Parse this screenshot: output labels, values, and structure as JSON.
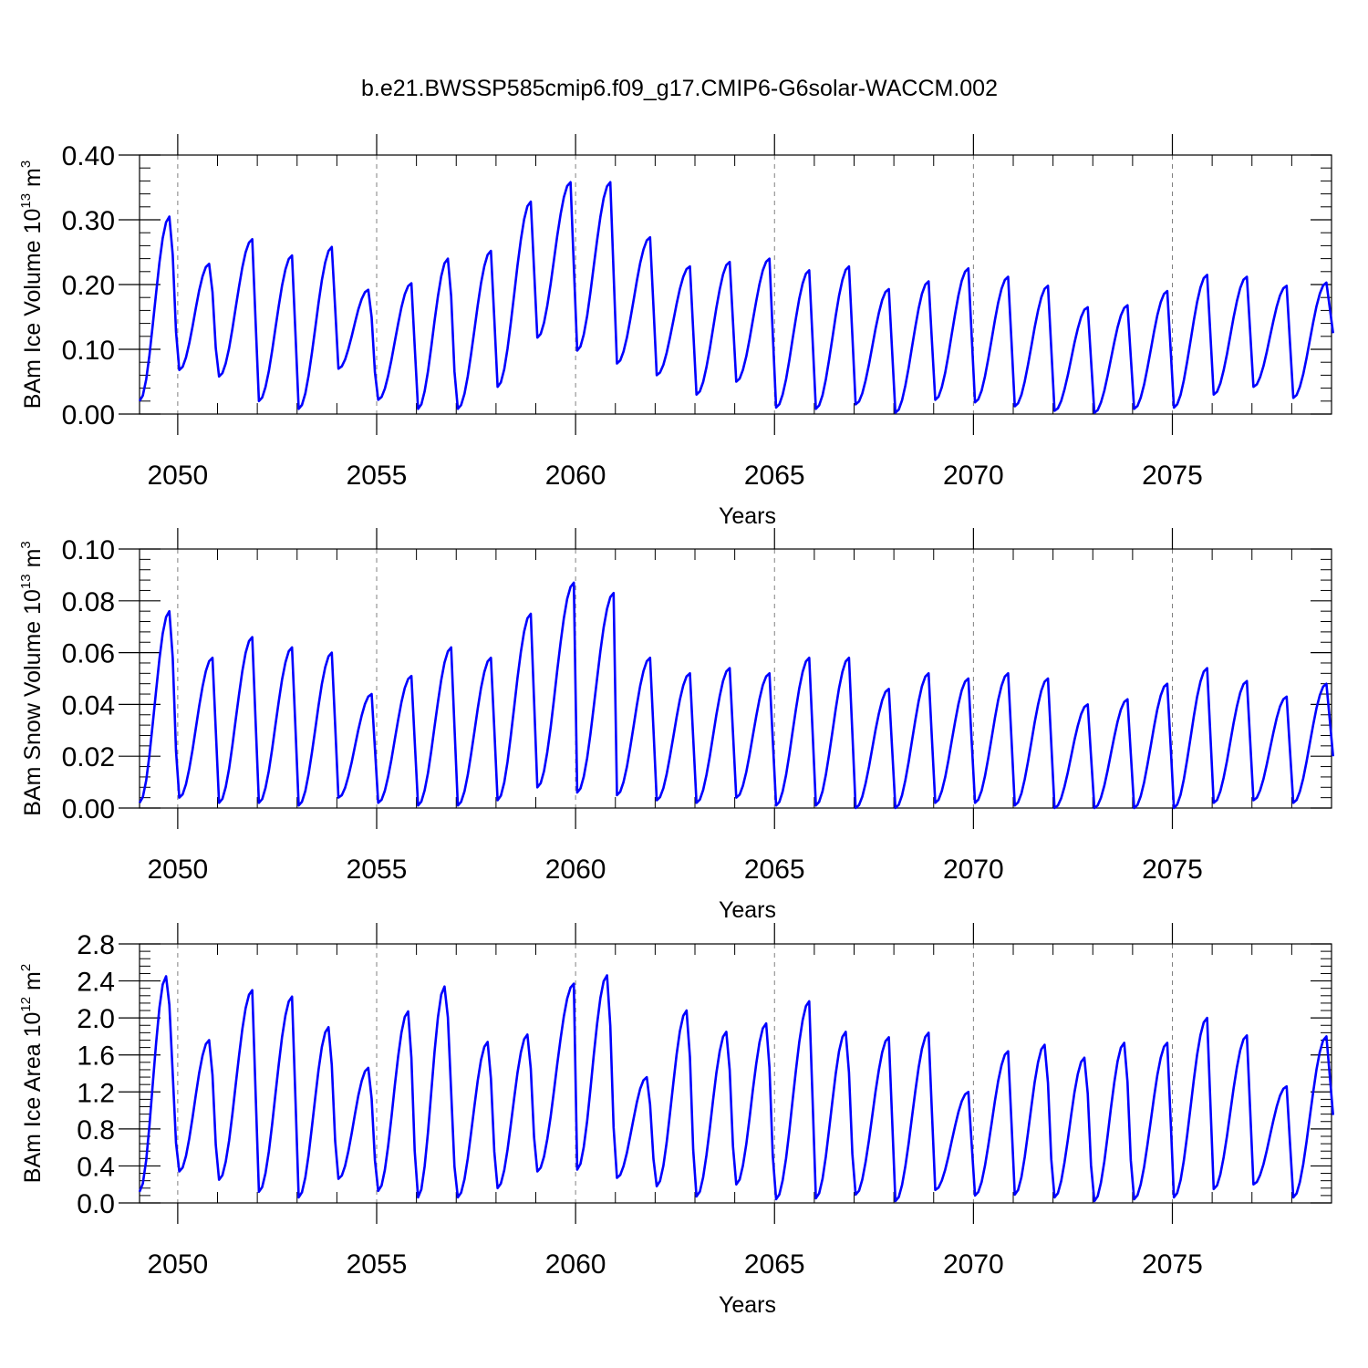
{
  "figure": {
    "title": "b.e21.BWSSP585cmip6.f09_g17.CMIP6-G6solar-WACCM.002",
    "colors": {
      "series": "#0000ff",
      "axes": "#000000",
      "refline": "#808080"
    }
  },
  "chart_data": [
    {
      "type": "line",
      "ylabel": {
        "prefix": "BAm Ice Volume 10",
        "sup_exp": "13",
        "unit": " m",
        "sup_unit": "3"
      },
      "xlabel": "Years",
      "xlim": [
        2049.04,
        2079.0
      ],
      "ylim": [
        0.0,
        0.4
      ],
      "yticks": [
        0.0,
        0.1,
        0.2,
        0.3,
        0.4
      ],
      "ytick_labels": [
        "0.00",
        "0.10",
        "0.20",
        "0.30",
        "0.40"
      ],
      "xticks": [
        2050,
        2055,
        2060,
        2065,
        2070,
        2075
      ],
      "xtick_labels": [
        "2050",
        "2055",
        "2060",
        "2065",
        "2070",
        "2075"
      ],
      "reference_lines_x": [
        2050,
        2055,
        2060,
        2065,
        2070,
        2075
      ],
      "grid": false,
      "series": [
        {
          "peak_months": [
            9,
            9,
            10,
            10,
            10,
            9,
            10,
            9,
            10,
            10,
            10,
            10,
            10,
            10,
            10,
            10,
            10,
            10,
            10,
            10,
            10,
            10,
            10,
            10,
            10,
            10,
            10,
            10,
            10,
            10
          ],
          "x_start": 2049.04,
          "step": 0.08333,
          "years": [
            {
              "min": 0.02,
              "max": 0.305
            },
            {
              "min": 0.068,
              "max": 0.232
            },
            {
              "min": 0.058,
              "max": 0.27
            },
            {
              "min": 0.02,
              "max": 0.245
            },
            {
              "min": 0.008,
              "max": 0.258
            },
            {
              "min": 0.07,
              "max": 0.192
            },
            {
              "min": 0.022,
              "max": 0.202
            },
            {
              "min": 0.008,
              "max": 0.24
            },
            {
              "min": 0.008,
              "max": 0.252
            },
            {
              "min": 0.042,
              "max": 0.328
            },
            {
              "min": 0.118,
              "max": 0.358
            },
            {
              "min": 0.098,
              "max": 0.358
            },
            {
              "min": 0.078,
              "max": 0.273
            },
            {
              "min": 0.06,
              "max": 0.228
            },
            {
              "min": 0.03,
              "max": 0.235
            },
            {
              "min": 0.05,
              "max": 0.24
            },
            {
              "min": 0.01,
              "max": 0.222
            },
            {
              "min": 0.008,
              "max": 0.228
            },
            {
              "min": 0.015,
              "max": 0.193
            },
            {
              "min": 0.002,
              "max": 0.205
            },
            {
              "min": 0.022,
              "max": 0.225
            },
            {
              "min": 0.018,
              "max": 0.212
            },
            {
              "min": 0.012,
              "max": 0.198
            },
            {
              "min": 0.005,
              "max": 0.165
            },
            {
              "min": 0.002,
              "max": 0.168
            },
            {
              "min": 0.008,
              "max": 0.19
            },
            {
              "min": 0.01,
              "max": 0.215
            },
            {
              "min": 0.03,
              "max": 0.212
            },
            {
              "min": 0.042,
              "max": 0.198
            },
            {
              "min": 0.025,
              "max": 0.203
            }
          ],
          "end_value": 0.125
        }
      ]
    },
    {
      "type": "line",
      "ylabel": {
        "prefix": "BAm Snow Volume 10",
        "sup_exp": "13",
        "unit": " m",
        "sup_unit": "3"
      },
      "xlabel": "Years",
      "xlim": [
        2049.04,
        2079.0
      ],
      "ylim": [
        0.0,
        0.1
      ],
      "yticks": [
        0.0,
        0.02,
        0.04,
        0.06,
        0.08,
        0.1
      ],
      "ytick_labels": [
        "0.00",
        "0.02",
        "0.04",
        "0.06",
        "0.08",
        "0.10"
      ],
      "xticks": [
        2050,
        2055,
        2060,
        2065,
        2070,
        2075
      ],
      "xtick_labels": [
        "2050",
        "2055",
        "2060",
        "2065",
        "2070",
        "2075"
      ],
      "reference_lines_x": [
        2050,
        2055,
        2060,
        2065,
        2070,
        2075
      ],
      "grid": false,
      "series": [
        {
          "peak_months": [
            9,
            10,
            10,
            10,
            10,
            10,
            10,
            10,
            10,
            10,
            11,
            11,
            10,
            10,
            10,
            10,
            10,
            10,
            10,
            10,
            10,
            10,
            10,
            10,
            10,
            10,
            10,
            10,
            10,
            10
          ],
          "x_start": 2049.04,
          "step": 0.08333,
          "years": [
            {
              "min": 0.002,
              "max": 0.076
            },
            {
              "min": 0.004,
              "max": 0.058
            },
            {
              "min": 0.002,
              "max": 0.066
            },
            {
              "min": 0.002,
              "max": 0.062
            },
            {
              "min": 0.001,
              "max": 0.06
            },
            {
              "min": 0.004,
              "max": 0.044
            },
            {
              "min": 0.002,
              "max": 0.051
            },
            {
              "min": 0.001,
              "max": 0.062
            },
            {
              "min": 0.001,
              "max": 0.058
            },
            {
              "min": 0.003,
              "max": 0.075
            },
            {
              "min": 0.008,
              "max": 0.087
            },
            {
              "min": 0.006,
              "max": 0.083
            },
            {
              "min": 0.005,
              "max": 0.058
            },
            {
              "min": 0.003,
              "max": 0.052
            },
            {
              "min": 0.002,
              "max": 0.054
            },
            {
              "min": 0.004,
              "max": 0.052
            },
            {
              "min": 0.001,
              "max": 0.058
            },
            {
              "min": 0.001,
              "max": 0.058
            },
            {
              "min": 0.0,
              "max": 0.046
            },
            {
              "min": 0.0,
              "max": 0.052
            },
            {
              "min": 0.002,
              "max": 0.05
            },
            {
              "min": 0.002,
              "max": 0.052
            },
            {
              "min": 0.001,
              "max": 0.05
            },
            {
              "min": 0.0,
              "max": 0.04
            },
            {
              "min": 0.0,
              "max": 0.042
            },
            {
              "min": 0.0,
              "max": 0.048
            },
            {
              "min": 0.0,
              "max": 0.054
            },
            {
              "min": 0.002,
              "max": 0.049
            },
            {
              "min": 0.003,
              "max": 0.043
            },
            {
              "min": 0.002,
              "max": 0.048
            }
          ],
          "end_value": 0.02
        }
      ]
    },
    {
      "type": "line",
      "ylabel": {
        "prefix": "BAm Ice Area 10",
        "sup_exp": "12",
        "unit": " m",
        "sup_unit": "2"
      },
      "xlabel": "Years",
      "xlim": [
        2049.04,
        2079.0
      ],
      "ylim": [
        0.0,
        2.8
      ],
      "yticks": [
        0.0,
        0.4,
        0.8,
        1.2,
        1.6,
        2.0,
        2.4,
        2.8
      ],
      "ytick_labels": [
        "0.0",
        "0.4",
        "0.8",
        "1.2",
        "1.6",
        "2.0",
        "2.4",
        "2.8"
      ],
      "xticks": [
        2050,
        2055,
        2060,
        2065,
        2070,
        2075
      ],
      "xtick_labels": [
        "2050",
        "2055",
        "2060",
        "2065",
        "2070",
        "2075"
      ],
      "reference_lines_x": [
        2050,
        2055,
        2060,
        2065,
        2070,
        2075
      ],
      "grid": false,
      "series": [
        {
          "peak_months": [
            8,
            9,
            10,
            10,
            9,
            9,
            9,
            8,
            9,
            9,
            11,
            9,
            9,
            9,
            9,
            9,
            10,
            9,
            10,
            10,
            10,
            10,
            9,
            9,
            9,
            10,
            10,
            10,
            10,
            10
          ],
          "x_start": 2049.04,
          "step": 0.08333,
          "years": [
            {
              "min": 0.12,
              "max": 2.45
            },
            {
              "min": 0.34,
              "max": 1.76
            },
            {
              "min": 0.25,
              "max": 2.3
            },
            {
              "min": 0.12,
              "max": 2.23
            },
            {
              "min": 0.06,
              "max": 1.9
            },
            {
              "min": 0.26,
              "max": 1.46
            },
            {
              "min": 0.13,
              "max": 2.07
            },
            {
              "min": 0.06,
              "max": 2.34
            },
            {
              "min": 0.06,
              "max": 1.74
            },
            {
              "min": 0.16,
              "max": 1.82
            },
            {
              "min": 0.34,
              "max": 2.37
            },
            {
              "min": 0.36,
              "max": 2.46
            },
            {
              "min": 0.27,
              "max": 1.36
            },
            {
              "min": 0.18,
              "max": 2.08
            },
            {
              "min": 0.07,
              "max": 1.85
            },
            {
              "min": 0.2,
              "max": 1.94
            },
            {
              "min": 0.04,
              "max": 2.18
            },
            {
              "min": 0.05,
              "max": 1.85
            },
            {
              "min": 0.09,
              "max": 1.79
            },
            {
              "min": 0.02,
              "max": 1.84
            },
            {
              "min": 0.14,
              "max": 1.2
            },
            {
              "min": 0.08,
              "max": 1.64
            },
            {
              "min": 0.09,
              "max": 1.71
            },
            {
              "min": 0.06,
              "max": 1.57
            },
            {
              "min": 0.02,
              "max": 1.73
            },
            {
              "min": 0.04,
              "max": 1.73
            },
            {
              "min": 0.06,
              "max": 2.0
            },
            {
              "min": 0.15,
              "max": 1.81
            },
            {
              "min": 0.2,
              "max": 1.26
            },
            {
              "min": 0.06,
              "max": 1.8
            }
          ],
          "end_value": 0.95
        }
      ]
    }
  ]
}
